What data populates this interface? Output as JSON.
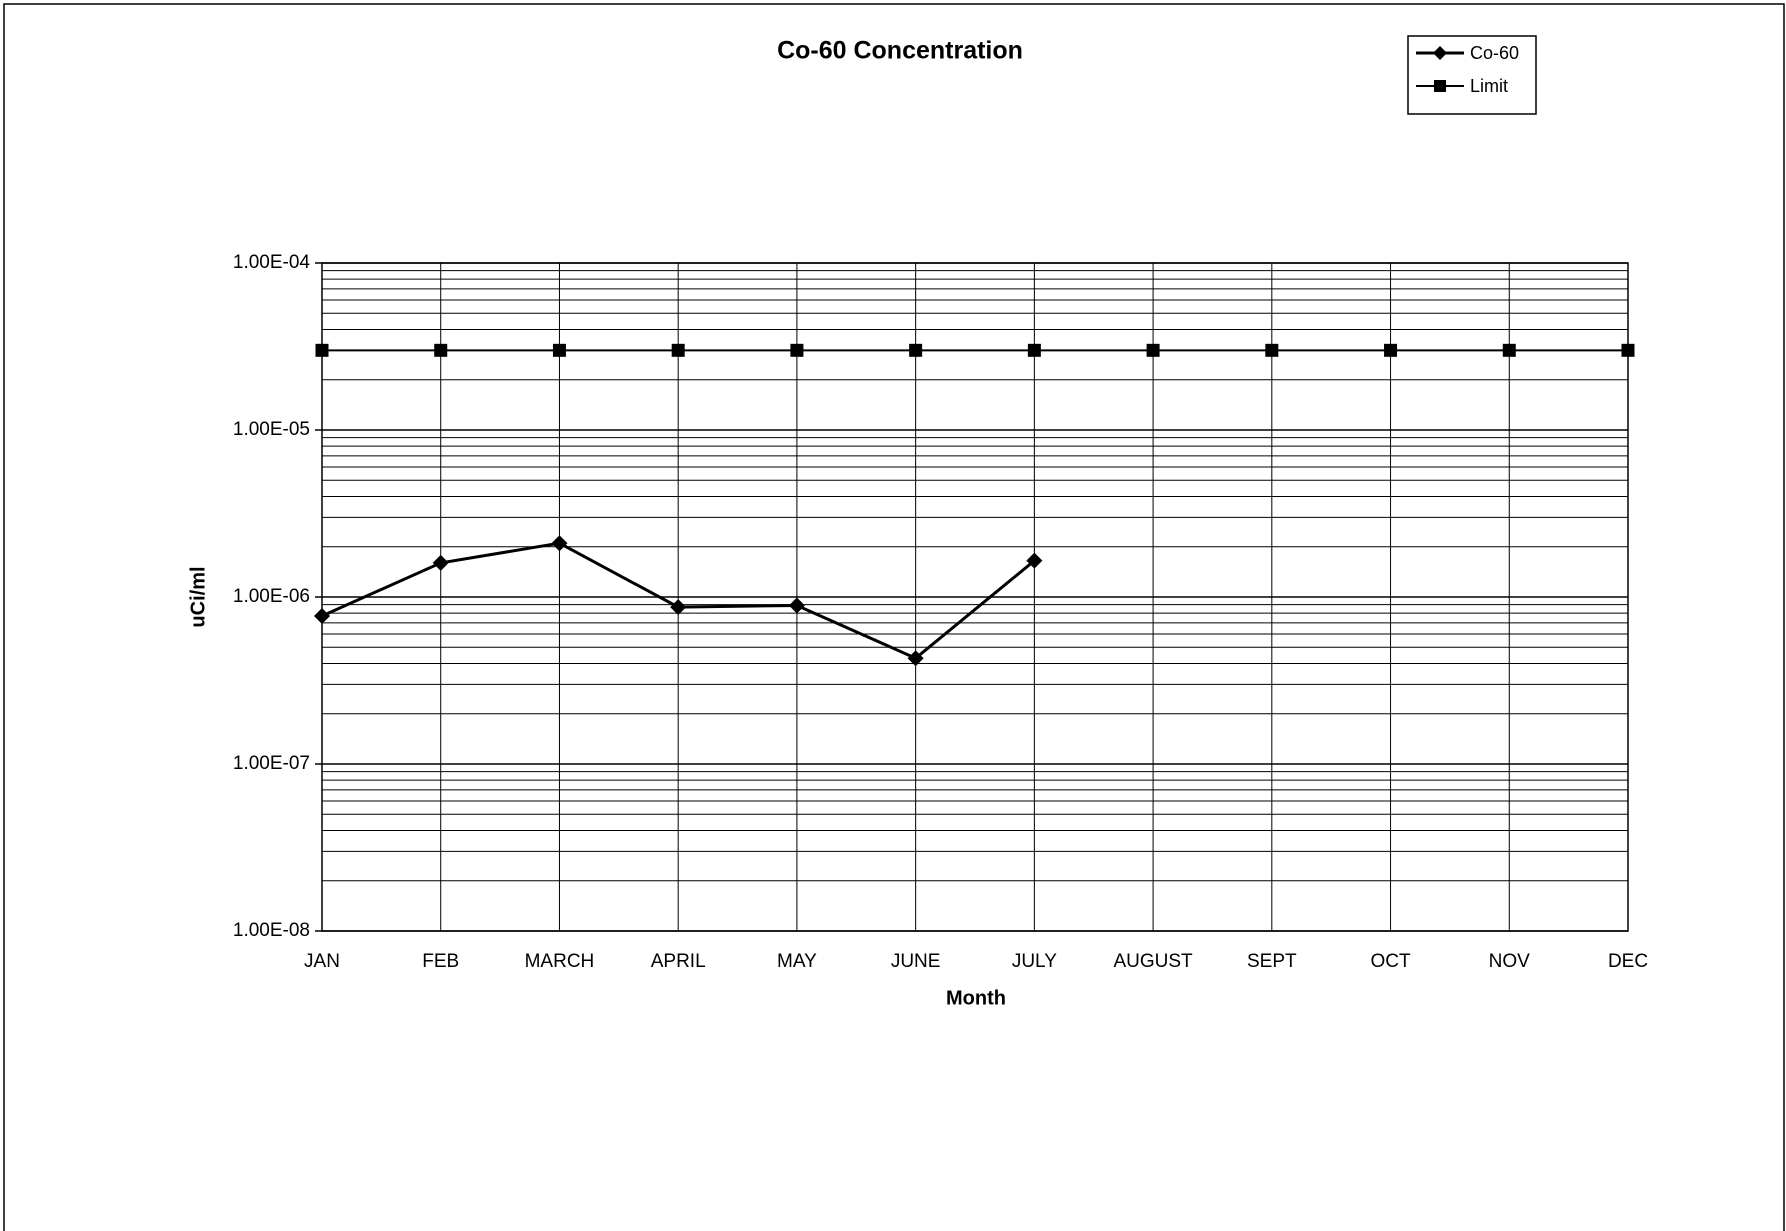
{
  "chart_data": {
    "type": "line",
    "title": "Co-60 Concentration",
    "x_label": "Month",
    "y_label": "uCi/ml",
    "categories": [
      "JAN",
      "FEB",
      "MARCH",
      "APRIL",
      "MAY",
      "JUNE",
      "JULY",
      "AUGUST",
      "SEPT",
      "OCT",
      "NOV",
      "DEC"
    ],
    "series": [
      {
        "name": "Co-60",
        "color": "#000000",
        "marker": "diamond",
        "line_width": 3,
        "values": [
          7.7e-07,
          1.6e-06,
          2.1e-06,
          8.7e-07,
          8.9e-07,
          4.3e-07,
          1.65e-06,
          null,
          null,
          null,
          null,
          null
        ]
      },
      {
        "name": "Limit",
        "color": "#000000",
        "marker": "square",
        "line_width": 2,
        "values": [
          3e-05,
          3e-05,
          3e-05,
          3e-05,
          3e-05,
          3e-05,
          3e-05,
          3e-05,
          3e-05,
          3e-05,
          3e-05,
          3e-05
        ]
      }
    ],
    "log_scale": true,
    "ylim": [
      1e-08,
      0.0001
    ],
    "yticks": [
      {
        "value": 1e-08,
        "label": "1.00E-08"
      },
      {
        "value": 1e-07,
        "label": "1.00E-07"
      },
      {
        "value": 1e-06,
        "label": "1.00E-06"
      },
      {
        "value": 1e-05,
        "label": "1.00E-05"
      },
      {
        "value": 0.0001,
        "label": "1.00E-04"
      }
    ],
    "grid": true,
    "minor_grid": true,
    "legend": "top-right"
  }
}
